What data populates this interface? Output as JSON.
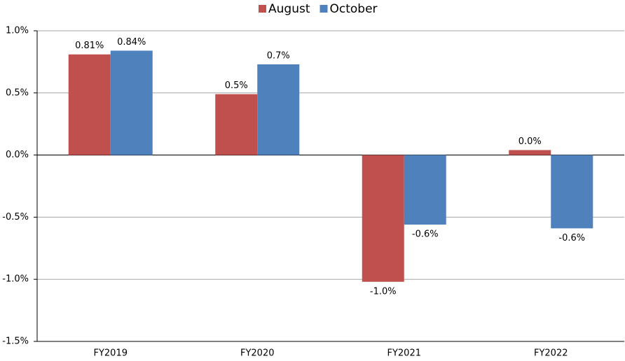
{
  "chart_data": {
    "type": "bar",
    "categories": [
      "FY2019",
      "FY2020",
      "FY2021",
      "FY2022"
    ],
    "series": [
      {
        "name": "August",
        "color": "#c0504d",
        "values": [
          0.81,
          0.49,
          -1.02,
          0.04
        ],
        "value_labels": [
          "0.81%",
          "0.5%",
          "-1.0%",
          "0.0%"
        ]
      },
      {
        "name": "October",
        "color": "#4f81bd",
        "values": [
          0.84,
          0.73,
          -0.56,
          -0.59
        ],
        "value_labels": [
          "0.84%",
          "0.7%",
          "-0.6%",
          "-0.6%"
        ]
      }
    ],
    "ylim": [
      -1.5,
      1.0
    ],
    "yticks": [
      {
        "value": 1.0,
        "label": "1.0%"
      },
      {
        "value": 0.5,
        "label": "0.5%"
      },
      {
        "value": 0,
        "label": "0.0%"
      },
      {
        "value": -0.5,
        "label": "-0.5%"
      },
      {
        "value": -1.0,
        "label": "-1.0%"
      },
      {
        "value": -1.5,
        "label": "-1.5%"
      }
    ],
    "grid": true,
    "legend": "top"
  }
}
